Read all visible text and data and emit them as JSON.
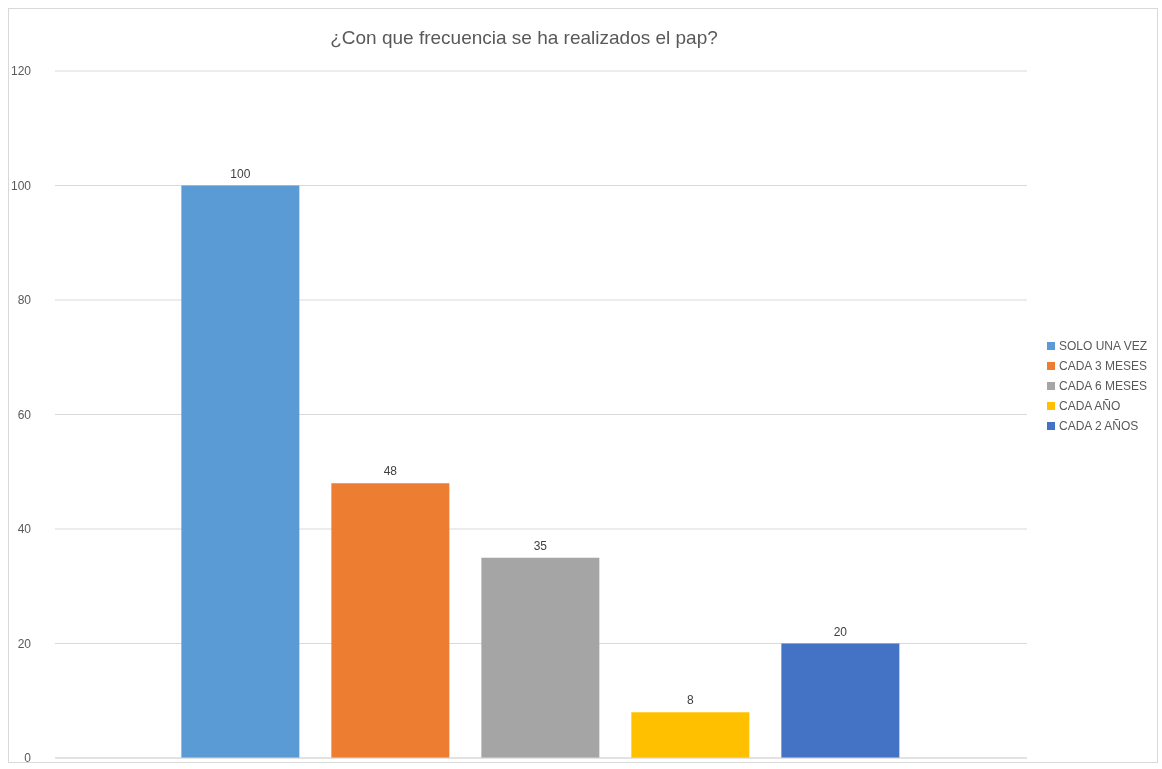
{
  "chart_data": {
    "type": "bar",
    "title": "¿Con que frecuencia se ha realizados el pap?",
    "categories": [
      null
    ],
    "series": [
      {
        "name": "SOLO UNA VEZ",
        "color": "#5b9bd5",
        "values": [
          100
        ]
      },
      {
        "name": "CADA 3 MESES",
        "color": "#ed7d31",
        "values": [
          48
        ]
      },
      {
        "name": "CADA 6 MESES",
        "color": "#a5a5a5",
        "values": [
          35
        ]
      },
      {
        "name": "CADA AÑO",
        "color": "#ffc000",
        "values": [
          8
        ]
      },
      {
        "name": "CADA 2 AÑOS",
        "color": "#4472c4",
        "values": [
          20
        ]
      }
    ],
    "ylim": [
      0,
      120
    ],
    "yticks": [
      0,
      20,
      40,
      60,
      80,
      100,
      120
    ],
    "grid": "y",
    "legend": "right",
    "data_labels": true
  }
}
